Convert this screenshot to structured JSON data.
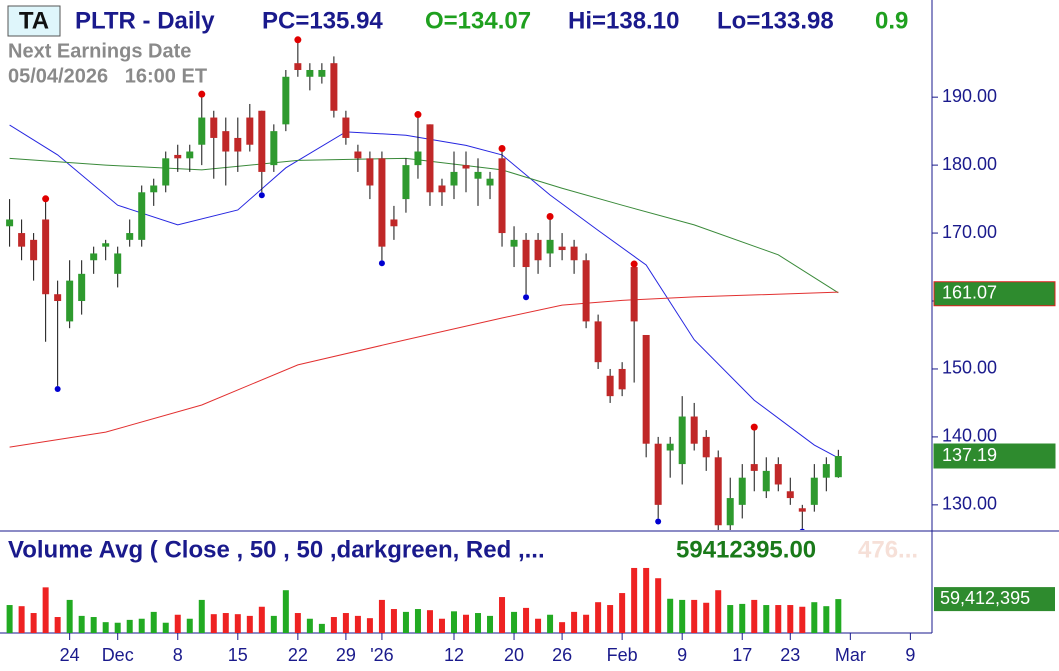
{
  "chart_data": {
    "type": "candlestick",
    "badge": "TA",
    "title": "PLTR - Daily",
    "stats": [
      "PC=135.94",
      "O=134.07",
      "Hi=138.10",
      "Lo=133.98",
      "0.9"
    ],
    "earnings_label": "Next Earnings Date",
    "earnings_date": "05/04/2026   16:00 ET",
    "up_color": "#2e9a2e",
    "down_color": "#c02828",
    "open": [
      171,
      170,
      169,
      172,
      161,
      157,
      160,
      166,
      168,
      164,
      169,
      169,
      176,
      177,
      181.5,
      181,
      183,
      187,
      185,
      184,
      187,
      188,
      180,
      186,
      195,
      193,
      193,
      195,
      187,
      182,
      181,
      181,
      172,
      175,
      180,
      186,
      177,
      177,
      180,
      178,
      177,
      181,
      168,
      169,
      169,
      167,
      168,
      168,
      166,
      157,
      149,
      150,
      165,
      155,
      139,
      138,
      136,
      143,
      140,
      137,
      127,
      130,
      136,
      132,
      136,
      132,
      129.5,
      130,
      134,
      134.07
    ],
    "high": [
      175,
      172,
      170,
      174.6,
      163,
      166,
      166,
      168,
      169,
      168,
      172,
      177,
      178,
      182,
      183,
      183,
      190,
      188,
      187,
      187,
      189,
      188,
      186,
      194,
      198,
      195,
      195,
      196,
      188,
      183,
      182,
      182,
      174,
      181,
      187,
      186,
      178,
      182,
      182,
      181,
      179,
      182,
      171,
      170,
      170,
      172,
      170,
      169,
      167,
      158,
      150,
      151,
      165,
      155,
      140,
      140,
      146,
      145,
      141,
      138,
      134,
      136,
      141,
      137,
      137,
      134,
      130,
      136,
      137,
      138.1
    ],
    "low": [
      168,
      166,
      163,
      154,
      147.5,
      156,
      158,
      164,
      166,
      162,
      168,
      168,
      174,
      176,
      179,
      179,
      180,
      178,
      177,
      179,
      182,
      176,
      179,
      185,
      193,
      191,
      192,
      187,
      183,
      179,
      175,
      166,
      169,
      173,
      178,
      174,
      174,
      175,
      176,
      174,
      175,
      168,
      165,
      161,
      164,
      165,
      166,
      164,
      156,
      150,
      145,
      146,
      148,
      137,
      128,
      134,
      133,
      138,
      135,
      126,
      126,
      128,
      132,
      131,
      132,
      130,
      126.5,
      129,
      132,
      133.98
    ],
    "close": [
      172,
      168,
      166,
      161,
      160,
      163,
      164,
      167,
      168.5,
      167,
      170,
      176,
      177,
      181,
      181,
      182,
      187,
      184,
      182,
      182,
      183,
      179,
      185,
      193,
      194,
      194,
      194,
      188,
      184,
      181,
      177,
      168,
      171,
      180,
      182,
      176,
      176,
      179,
      179.5,
      179,
      178,
      170,
      169,
      165,
      166,
      169,
      167.5,
      166,
      157,
      151,
      146,
      147,
      157,
      139,
      130,
      139,
      143,
      139,
      137,
      127,
      131,
      134,
      135,
      135,
      133,
      131,
      129,
      134,
      136,
      137.19
    ],
    "volume": [
      49000000,
      47000000,
      35000000,
      80000000,
      28000000,
      58000000,
      30000000,
      28000000,
      19000000,
      18000000,
      23000000,
      25000000,
      37000000,
      18000000,
      32000000,
      25000000,
      58000000,
      33000000,
      35000000,
      33000000,
      30000000,
      46000000,
      30000000,
      75000000,
      35000000,
      25000000,
      16000000,
      28000000,
      35000000,
      30000000,
      26000000,
      58000000,
      42000000,
      37000000,
      42000000,
      40000000,
      25000000,
      38000000,
      32000000,
      35000000,
      30000000,
      63000000,
      37000000,
      44000000,
      25000000,
      32000000,
      19000000,
      37000000,
      32000000,
      54000000,
      49000000,
      70000000,
      114000000,
      114000000,
      96000000,
      60000000,
      58000000,
      58000000,
      53000000,
      75000000,
      49000000,
      51000000,
      58000000,
      49000000,
      49000000,
      49000000,
      46000000,
      54000000,
      47000000,
      59412395
    ],
    "pivot_highs": [
      3,
      16,
      24,
      34,
      41,
      45,
      52,
      62
    ],
    "pivot_lows": [
      4,
      21,
      31,
      43,
      54,
      60,
      66
    ],
    "moving_averages": [
      {
        "color": "#2626e0",
        "x": [
          0,
          4,
          9,
          14,
          19,
          23,
          28,
          33,
          38,
          41,
          45,
          49,
          53,
          57,
          62,
          67,
          69
        ],
        "values": [
          185.9,
          181.5,
          174.1,
          171.2,
          173.4,
          179.6,
          184.9,
          184.4,
          182.9,
          181.5,
          175.6,
          170.4,
          165.3,
          154.3,
          145.4,
          138.8,
          136.9
        ]
      },
      {
        "color": "#3a8a3a",
        "x": [
          0,
          8,
          16,
          24,
          33,
          41,
          46,
          51,
          57,
          64,
          69
        ],
        "values": [
          181,
          180,
          179.3,
          180.7,
          181,
          179.3,
          176.6,
          174.1,
          171.2,
          166.8,
          161.2
        ]
      },
      {
        "color": "#e23030",
        "x": [
          0,
          8,
          16,
          24,
          33,
          41,
          46,
          51,
          57,
          69
        ],
        "values": [
          138.5,
          140.7,
          144.7,
          150.6,
          154.3,
          157.5,
          159.4,
          160.1,
          160.6,
          161.3
        ]
      }
    ],
    "price_tags": [
      {
        "value": 161.07,
        "label": "161.07"
      },
      {
        "value": 137.19,
        "label": "137.19"
      }
    ],
    "xlim": [
      -0.8,
      76.8
    ],
    "ylim": [
      126.3,
      204.3
    ],
    "yticks": [
      {
        "value": 130,
        "label": "130.00"
      },
      {
        "value": 140,
        "label": "140.00"
      },
      {
        "value": 150,
        "label": "150.00"
      },
      {
        "value": 160,
        "label": "160.00"
      },
      {
        "value": 170,
        "label": "170.00"
      },
      {
        "value": 180,
        "label": "180.00"
      },
      {
        "value": 190,
        "label": "190.00"
      }
    ],
    "xticks": [
      {
        "value": 5,
        "label": "24"
      },
      {
        "value": 9,
        "label": "Dec"
      },
      {
        "value": 14,
        "label": "8"
      },
      {
        "value": 19,
        "label": "15"
      },
      {
        "value": 24,
        "label": "22"
      },
      {
        "value": 28,
        "label": "29"
      },
      {
        "value": 31,
        "label": "'26"
      },
      {
        "value": 37,
        "label": "12"
      },
      {
        "value": 42,
        "label": "20"
      },
      {
        "value": 46,
        "label": "26"
      },
      {
        "value": 51,
        "label": "Feb"
      },
      {
        "value": 56,
        "label": "9"
      },
      {
        "value": 61,
        "label": "17"
      },
      {
        "value": 65,
        "label": "23"
      },
      {
        "value": 70,
        "label": "Mar"
      },
      {
        "value": 75,
        "label": "9"
      }
    ],
    "volume_title": "Volume Avg ( Close , 50 , 50 ,darkgreen, Red ,...",
    "volume_value": "59412395.00",
    "volume_avg_clip": "476...",
    "volume_ylim": [
      0,
      163000000
    ],
    "volume_tag": {
      "value": 59412395,
      "label": "59,412,395"
    }
  }
}
